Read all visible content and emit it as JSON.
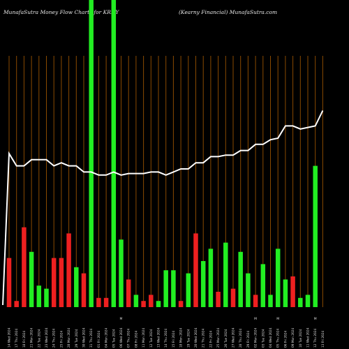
{
  "header": {
    "left": "MunafaSutra  Money Flow  Charts for KRNY",
    "right": "(Kearny Financial) MunafaSutra.com"
  },
  "colors": {
    "background": "#000000",
    "gridline": "#8a4a00",
    "up": "#22ee22",
    "down": "#ee2020",
    "line": "#ffffff",
    "label": "#dddddd"
  },
  "chart_data": {
    "type": "bar",
    "title": "",
    "xlabel": "",
    "ylabel": "",
    "grid": true,
    "ylim": [
      0,
      100
    ],
    "categories": [
      "14 Wed 2024",
      "17 Thu 2024",
      "18 Fri 2024",
      "21 Mon 2024",
      "22 Tue 2024",
      "23 Wed 2024",
      "24 Thu 2024",
      "25 Fri 2024",
      "28 Mon 2024",
      "29 Tue 2024",
      "30 Wed 2024",
      "31 Thu 2024",
      "01 Fri 2024",
      "04 Mon 2024",
      "05 Tue 2024",
      "06 Wed 2024",
      "07 Thu 2024",
      "08 Fri 2024",
      "11 Mon 2024",
      "12 Tue 2024",
      "13 Wed 2024",
      "14 Thu 2024",
      "15 Fri 2024",
      "18 Mon 2024",
      "19 Tue 2024",
      "20 Wed 2024",
      "21 Thu 2024",
      "22 Fri 2024",
      "25 Mon 2024",
      "26 Tue 2024",
      "27 Wed 2024",
      "28 Thu 2024",
      "29 Fri 2024",
      "02 Mon 2024",
      "03 Tue 2024",
      "04 Wed 2024",
      "05 Thu 2024",
      "06 Fri 2024",
      "09 Mon 2024",
      "10 Tue 2024",
      "11 Wed 2024",
      "12 Thu 2024",
      "13 Fri 2024"
    ],
    "series": [
      {
        "type": "bar",
        "values": [
          16,
          2,
          26,
          18,
          7,
          6,
          16,
          16,
          24,
          13,
          11,
          100,
          3,
          3,
          100,
          22,
          9,
          4,
          2,
          4,
          2,
          12,
          12,
          2,
          11,
          24,
          15,
          19,
          5,
          21,
          6,
          18,
          11,
          4,
          14,
          4,
          19,
          9,
          10,
          3,
          4,
          46,
          0
        ],
        "direction": [
          "down",
          "down",
          "down",
          "up",
          "up",
          "up",
          "down",
          "down",
          "down",
          "up",
          "down",
          "up",
          "down",
          "down",
          "up",
          "up",
          "down",
          "up",
          "down",
          "down",
          "up",
          "up",
          "up",
          "down",
          "up",
          "down",
          "up",
          "up",
          "down",
          "up",
          "down",
          "up",
          "up",
          "down",
          "up",
          "up",
          "up",
          "up",
          "down",
          "up",
          "up",
          "up",
          "up"
        ]
      },
      {
        "type": "line",
        "values": [
          50,
          46,
          46,
          48,
          48,
          48,
          46,
          47,
          46,
          46,
          44,
          44,
          43,
          43,
          44,
          43,
          43.5,
          43.5,
          43.5,
          44,
          44,
          43,
          44,
          45,
          45,
          47,
          47,
          49,
          49,
          49.5,
          49.5,
          51,
          51,
          53,
          53,
          54.5,
          55,
          59,
          59,
          58,
          58.5,
          59,
          64
        ]
      }
    ],
    "x_annotations": [
      "M",
      "M",
      "M",
      "M"
    ]
  }
}
